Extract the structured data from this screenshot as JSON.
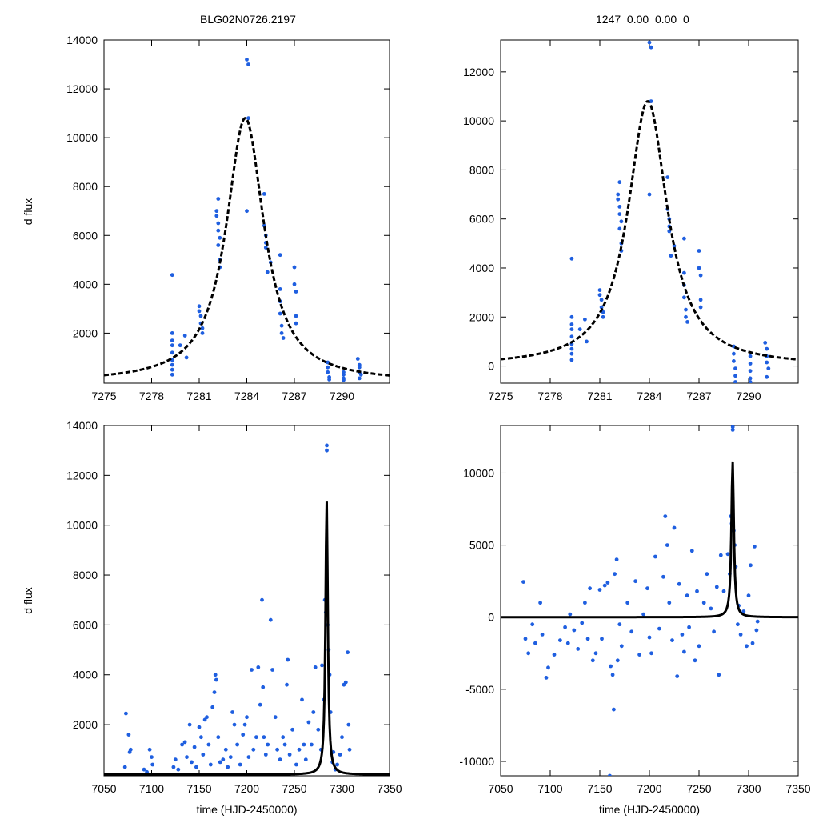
{
  "titles": {
    "left": "BLG02N0726.2197",
    "right": "1247  0.00  0.00  0"
  },
  "colors": {
    "points": "#1f5fe0",
    "model": "#000000",
    "axis": "#000000"
  },
  "chart_data": [
    {
      "id": "top-left",
      "type": "scatter",
      "xlim": [
        7275,
        7293
      ],
      "ylim": [
        -50,
        14000
      ],
      "xticks": [
        7275,
        7278,
        7281,
        7284,
        7287,
        7290
      ],
      "yticks": [
        2000,
        4000,
        6000,
        8000,
        10000,
        12000,
        14000
      ],
      "ylabel": "d flux",
      "xlabel": "",
      "model": {
        "t0": 7283.9,
        "peak": 10800,
        "tau": 1.45
      },
      "points": [
        [
          7279.3,
          4380
        ],
        [
          7279.3,
          2000
        ],
        [
          7279.3,
          1700
        ],
        [
          7279.3,
          1500
        ],
        [
          7279.3,
          1200
        ],
        [
          7279.3,
          900
        ],
        [
          7279.3,
          700
        ],
        [
          7279.3,
          500
        ],
        [
          7279.3,
          300
        ],
        [
          7279.8,
          1500
        ],
        [
          7280.1,
          1900
        ],
        [
          7280.2,
          1000
        ],
        [
          7281.0,
          3100
        ],
        [
          7281.0,
          2900
        ],
        [
          7281.1,
          2700
        ],
        [
          7281.1,
          2400
        ],
        [
          7281.2,
          2200
        ],
        [
          7281.2,
          2000
        ],
        [
          7282.1,
          7000
        ],
        [
          7282.1,
          6800
        ],
        [
          7282.2,
          6500
        ],
        [
          7282.2,
          6200
        ],
        [
          7282.3,
          5900
        ],
        [
          7282.2,
          5600
        ],
        [
          7282.3,
          5000
        ],
        [
          7282.3,
          4700
        ],
        [
          7282.2,
          7500
        ],
        [
          7284.0,
          13200
        ],
        [
          7284.1,
          13000
        ],
        [
          7284.1,
          10800
        ],
        [
          7284.0,
          7000
        ],
        [
          7285.1,
          7700
        ],
        [
          7285.1,
          6400
        ],
        [
          7285.2,
          6000
        ],
        [
          7285.2,
          5700
        ],
        [
          7285.2,
          5500
        ],
        [
          7285.3,
          4500
        ],
        [
          7285.5,
          4900
        ],
        [
          7286.1,
          5200
        ],
        [
          7286.1,
          3800
        ],
        [
          7286.1,
          3300
        ],
        [
          7286.1,
          2800
        ],
        [
          7286.2,
          2300
        ],
        [
          7286.2,
          2000
        ],
        [
          7286.3,
          1800
        ],
        [
          7287.0,
          4700
        ],
        [
          7287.0,
          4000
        ],
        [
          7287.1,
          3700
        ],
        [
          7287.1,
          2700
        ],
        [
          7287.1,
          2400
        ],
        [
          7289.1,
          800
        ],
        [
          7289.1,
          600
        ],
        [
          7289.1,
          400
        ],
        [
          7289.2,
          200
        ],
        [
          7289.2,
          100
        ],
        [
          7290.1,
          400
        ],
        [
          7290.1,
          300
        ],
        [
          7290.1,
          150
        ],
        [
          7290.1,
          80
        ],
        [
          7291.0,
          950
        ],
        [
          7291.1,
          700
        ],
        [
          7291.1,
          600
        ],
        [
          7291.1,
          400
        ],
        [
          7291.2,
          300
        ],
        [
          7291.1,
          150
        ]
      ]
    },
    {
      "id": "top-right",
      "type": "scatter",
      "xlim": [
        7275,
        7293
      ],
      "ylim": [
        -700,
        13300
      ],
      "xticks": [
        7275,
        7278,
        7281,
        7284,
        7287,
        7290
      ],
      "yticks": [
        0,
        2000,
        4000,
        6000,
        8000,
        10000,
        12000
      ],
      "ylabel": "",
      "xlabel": "",
      "model": {
        "t0": 7283.9,
        "peak": 10800,
        "tau": 1.45
      },
      "points": [
        [
          7279.3,
          4380
        ],
        [
          7279.3,
          2000
        ],
        [
          7279.3,
          1700
        ],
        [
          7279.3,
          1500
        ],
        [
          7279.3,
          1200
        ],
        [
          7279.3,
          900
        ],
        [
          7279.3,
          700
        ],
        [
          7279.3,
          500
        ],
        [
          7279.3,
          250
        ],
        [
          7279.8,
          1500
        ],
        [
          7280.1,
          1900
        ],
        [
          7280.2,
          1000
        ],
        [
          7281.0,
          3100
        ],
        [
          7281.0,
          2900
        ],
        [
          7281.1,
          2700
        ],
        [
          7281.1,
          2400
        ],
        [
          7281.2,
          2200
        ],
        [
          7281.2,
          2000
        ],
        [
          7282.1,
          7000
        ],
        [
          7282.1,
          6800
        ],
        [
          7282.2,
          6500
        ],
        [
          7282.2,
          6200
        ],
        [
          7282.3,
          5900
        ],
        [
          7282.2,
          5600
        ],
        [
          7282.3,
          5000
        ],
        [
          7282.3,
          4700
        ],
        [
          7282.2,
          7500
        ],
        [
          7284.0,
          13200
        ],
        [
          7284.1,
          13000
        ],
        [
          7284.1,
          10800
        ],
        [
          7284.0,
          7000
        ],
        [
          7285.1,
          7700
        ],
        [
          7285.1,
          6400
        ],
        [
          7285.2,
          6000
        ],
        [
          7285.2,
          5700
        ],
        [
          7285.2,
          5500
        ],
        [
          7285.3,
          4500
        ],
        [
          7285.5,
          4900
        ],
        [
          7286.1,
          5200
        ],
        [
          7286.1,
          3800
        ],
        [
          7286.1,
          3300
        ],
        [
          7286.1,
          2800
        ],
        [
          7286.2,
          2300
        ],
        [
          7286.2,
          2000
        ],
        [
          7286.3,
          1800
        ],
        [
          7287.0,
          4700
        ],
        [
          7287.0,
          4000
        ],
        [
          7287.1,
          3700
        ],
        [
          7287.1,
          2700
        ],
        [
          7287.1,
          2400
        ],
        [
          7289.1,
          800
        ],
        [
          7289.1,
          500
        ],
        [
          7289.1,
          200
        ],
        [
          7289.2,
          -100
        ],
        [
          7289.2,
          -400
        ],
        [
          7289.2,
          -650
        ],
        [
          7290.1,
          400
        ],
        [
          7290.1,
          100
        ],
        [
          7290.1,
          -200
        ],
        [
          7290.1,
          -500
        ],
        [
          7290.1,
          -650
        ],
        [
          7291.0,
          950
        ],
        [
          7291.1,
          700
        ],
        [
          7291.1,
          400
        ],
        [
          7291.1,
          150
        ],
        [
          7291.2,
          -100
        ],
        [
          7291.1,
          -450
        ]
      ]
    },
    {
      "id": "bottom-left",
      "type": "scatter",
      "xlim": [
        7050,
        7350
      ],
      "ylim": [
        -50,
        14000
      ],
      "xticks": [
        7050,
        7100,
        7150,
        7200,
        7250,
        7300,
        7350
      ],
      "yticks": [
        2000,
        4000,
        6000,
        8000,
        10000,
        12000,
        14000
      ],
      "ylabel": "d flux",
      "xlabel": "time (HJD-2450000)",
      "model": {
        "t0": 7283.9,
        "peak": 11000,
        "tau": 1.45
      },
      "points": [
        [
          7073,
          2450
        ],
        [
          7076,
          1600
        ],
        [
          7077,
          900
        ],
        [
          7078,
          1000
        ],
        [
          7072,
          300
        ],
        [
          7092,
          200
        ],
        [
          7095,
          100
        ],
        [
          7098,
          1000
        ],
        [
          7100,
          700
        ],
        [
          7101,
          400
        ],
        [
          7123,
          300
        ],
        [
          7125,
          600
        ],
        [
          7128,
          200
        ],
        [
          7132,
          1200
        ],
        [
          7135,
          1300
        ],
        [
          7137,
          700
        ],
        [
          7140,
          2000
        ],
        [
          7142,
          500
        ],
        [
          7145,
          1100
        ],
        [
          7147,
          300
        ],
        [
          7150,
          1900
        ],
        [
          7152,
          1500
        ],
        [
          7154,
          800
        ],
        [
          7156,
          2200
        ],
        [
          7158,
          2300
        ],
        [
          7160,
          1200
        ],
        [
          7162,
          400
        ],
        [
          7164,
          2700
        ],
        [
          7166,
          3300
        ],
        [
          7167,
          4000
        ],
        [
          7168,
          3800
        ],
        [
          7170,
          1500
        ],
        [
          7172,
          500
        ],
        [
          7175,
          600
        ],
        [
          7178,
          1000
        ],
        [
          7180,
          300
        ],
        [
          7183,
          700
        ],
        [
          7185,
          2500
        ],
        [
          7187,
          2000
        ],
        [
          7190,
          1200
        ],
        [
          7193,
          400
        ],
        [
          7196,
          1600
        ],
        [
          7198,
          2000
        ],
        [
          7200,
          2300
        ],
        [
          7202,
          700
        ],
        [
          7205,
          4200
        ],
        [
          7207,
          1000
        ],
        [
          7210,
          1500
        ],
        [
          7212,
          4300
        ],
        [
          7214,
          2800
        ],
        [
          7216,
          7000
        ],
        [
          7217,
          3500
        ],
        [
          7218,
          1500
        ],
        [
          7220,
          800
        ],
        [
          7222,
          1200
        ],
        [
          7225,
          6200
        ],
        [
          7227,
          4200
        ],
        [
          7230,
          2300
        ],
        [
          7232,
          1000
        ],
        [
          7235,
          600
        ],
        [
          7238,
          1500
        ],
        [
          7240,
          1200
        ],
        [
          7242,
          3600
        ],
        [
          7243,
          4600
        ],
        [
          7245,
          800
        ],
        [
          7248,
          1800
        ],
        [
          7252,
          400
        ],
        [
          7255,
          1000
        ],
        [
          7258,
          3000
        ],
        [
          7260,
          1200
        ],
        [
          7262,
          600
        ],
        [
          7265,
          2100
        ],
        [
          7268,
          1200
        ],
        [
          7270,
          2500
        ],
        [
          7272,
          4300
        ],
        [
          7275,
          1800
        ],
        [
          7278,
          1000
        ],
        [
          7279,
          4380
        ],
        [
          7281,
          3000
        ],
        [
          7282,
          7000
        ],
        [
          7283,
          6500
        ],
        [
          7284,
          13200
        ],
        [
          7284,
          13000
        ],
        [
          7285,
          6000
        ],
        [
          7286,
          5000
        ],
        [
          7287,
          4000
        ],
        [
          7288,
          2500
        ],
        [
          7290,
          500
        ],
        [
          7291,
          900
        ],
        [
          7293,
          200
        ],
        [
          7295,
          400
        ],
        [
          7298,
          800
        ],
        [
          7300,
          1500
        ],
        [
          7302,
          3600
        ],
        [
          7304,
          3700
        ],
        [
          7306,
          4900
        ],
        [
          7307,
          2000
        ],
        [
          7308,
          1000
        ]
      ]
    },
    {
      "id": "bottom-right",
      "type": "scatter",
      "xlim": [
        7050,
        7350
      ],
      "ylim": [
        -11000,
        13300
      ],
      "xticks": [
        7050,
        7100,
        7150,
        7200,
        7250,
        7300,
        7350
      ],
      "yticks": [
        -10000,
        -5000,
        0,
        5000,
        10000
      ],
      "ylabel": "",
      "xlabel": "time (HJD-2450000)",
      "model": {
        "t0": 7283.9,
        "peak": 10800,
        "tau": 1.45
      },
      "points": [
        [
          7073,
          2450
        ],
        [
          7075,
          -1500
        ],
        [
          7078,
          -2500
        ],
        [
          7082,
          -500
        ],
        [
          7085,
          -1800
        ],
        [
          7090,
          1000
        ],
        [
          7092,
          -1200
        ],
        [
          7096,
          -4200
        ],
        [
          7098,
          -3500
        ],
        [
          7104,
          -2600
        ],
        [
          7110,
          -1600
        ],
        [
          7115,
          -700
        ],
        [
          7118,
          -1800
        ],
        [
          7120,
          200
        ],
        [
          7124,
          -900
        ],
        [
          7128,
          -2200
        ],
        [
          7132,
          -400
        ],
        [
          7135,
          1000
        ],
        [
          7138,
          -1500
        ],
        [
          7140,
          2000
        ],
        [
          7143,
          -3000
        ],
        [
          7146,
          -2500
        ],
        [
          7150,
          1900
        ],
        [
          7152,
          -1500
        ],
        [
          7155,
          2200
        ],
        [
          7158,
          2400
        ],
        [
          7160,
          -11000
        ],
        [
          7161,
          -3400
        ],
        [
          7163,
          -4000
        ],
        [
          7164,
          -6400
        ],
        [
          7165,
          3000
        ],
        [
          7167,
          4000
        ],
        [
          7168,
          -3000
        ],
        [
          7170,
          -500
        ],
        [
          7172,
          -2000
        ],
        [
          7178,
          1000
        ],
        [
          7182,
          -1000
        ],
        [
          7186,
          2500
        ],
        [
          7190,
          -2600
        ],
        [
          7194,
          200
        ],
        [
          7198,
          2000
        ],
        [
          7200,
          -1400
        ],
        [
          7202,
          -2500
        ],
        [
          7206,
          4200
        ],
        [
          7210,
          -800
        ],
        [
          7214,
          2800
        ],
        [
          7216,
          7000
        ],
        [
          7218,
          5000
        ],
        [
          7220,
          1000
        ],
        [
          7223,
          -1600
        ],
        [
          7225,
          6200
        ],
        [
          7228,
          -4100
        ],
        [
          7230,
          2300
        ],
        [
          7233,
          -1200
        ],
        [
          7235,
          -2400
        ],
        [
          7238,
          1500
        ],
        [
          7240,
          -700
        ],
        [
          7243,
          4600
        ],
        [
          7246,
          -3000
        ],
        [
          7248,
          1800
        ],
        [
          7250,
          -2000
        ],
        [
          7255,
          1000
        ],
        [
          7258,
          3000
        ],
        [
          7262,
          600
        ],
        [
          7265,
          -1000
        ],
        [
          7268,
          2100
        ],
        [
          7270,
          -4000
        ],
        [
          7272,
          4300
        ],
        [
          7275,
          1800
        ],
        [
          7279,
          4380
        ],
        [
          7281,
          3000
        ],
        [
          7282,
          7000
        ],
        [
          7283,
          6500
        ],
        [
          7284,
          13200
        ],
        [
          7284,
          13000
        ],
        [
          7285,
          6000
        ],
        [
          7286,
          5000
        ],
        [
          7287,
          3500
        ],
        [
          7289,
          -500
        ],
        [
          7290,
          800
        ],
        [
          7292,
          -1200
        ],
        [
          7295,
          400
        ],
        [
          7298,
          -2000
        ],
        [
          7300,
          1500
        ],
        [
          7302,
          3600
        ],
        [
          7304,
          -1800
        ],
        [
          7306,
          4900
        ],
        [
          7308,
          -900
        ],
        [
          7309,
          -300
        ]
      ]
    }
  ]
}
